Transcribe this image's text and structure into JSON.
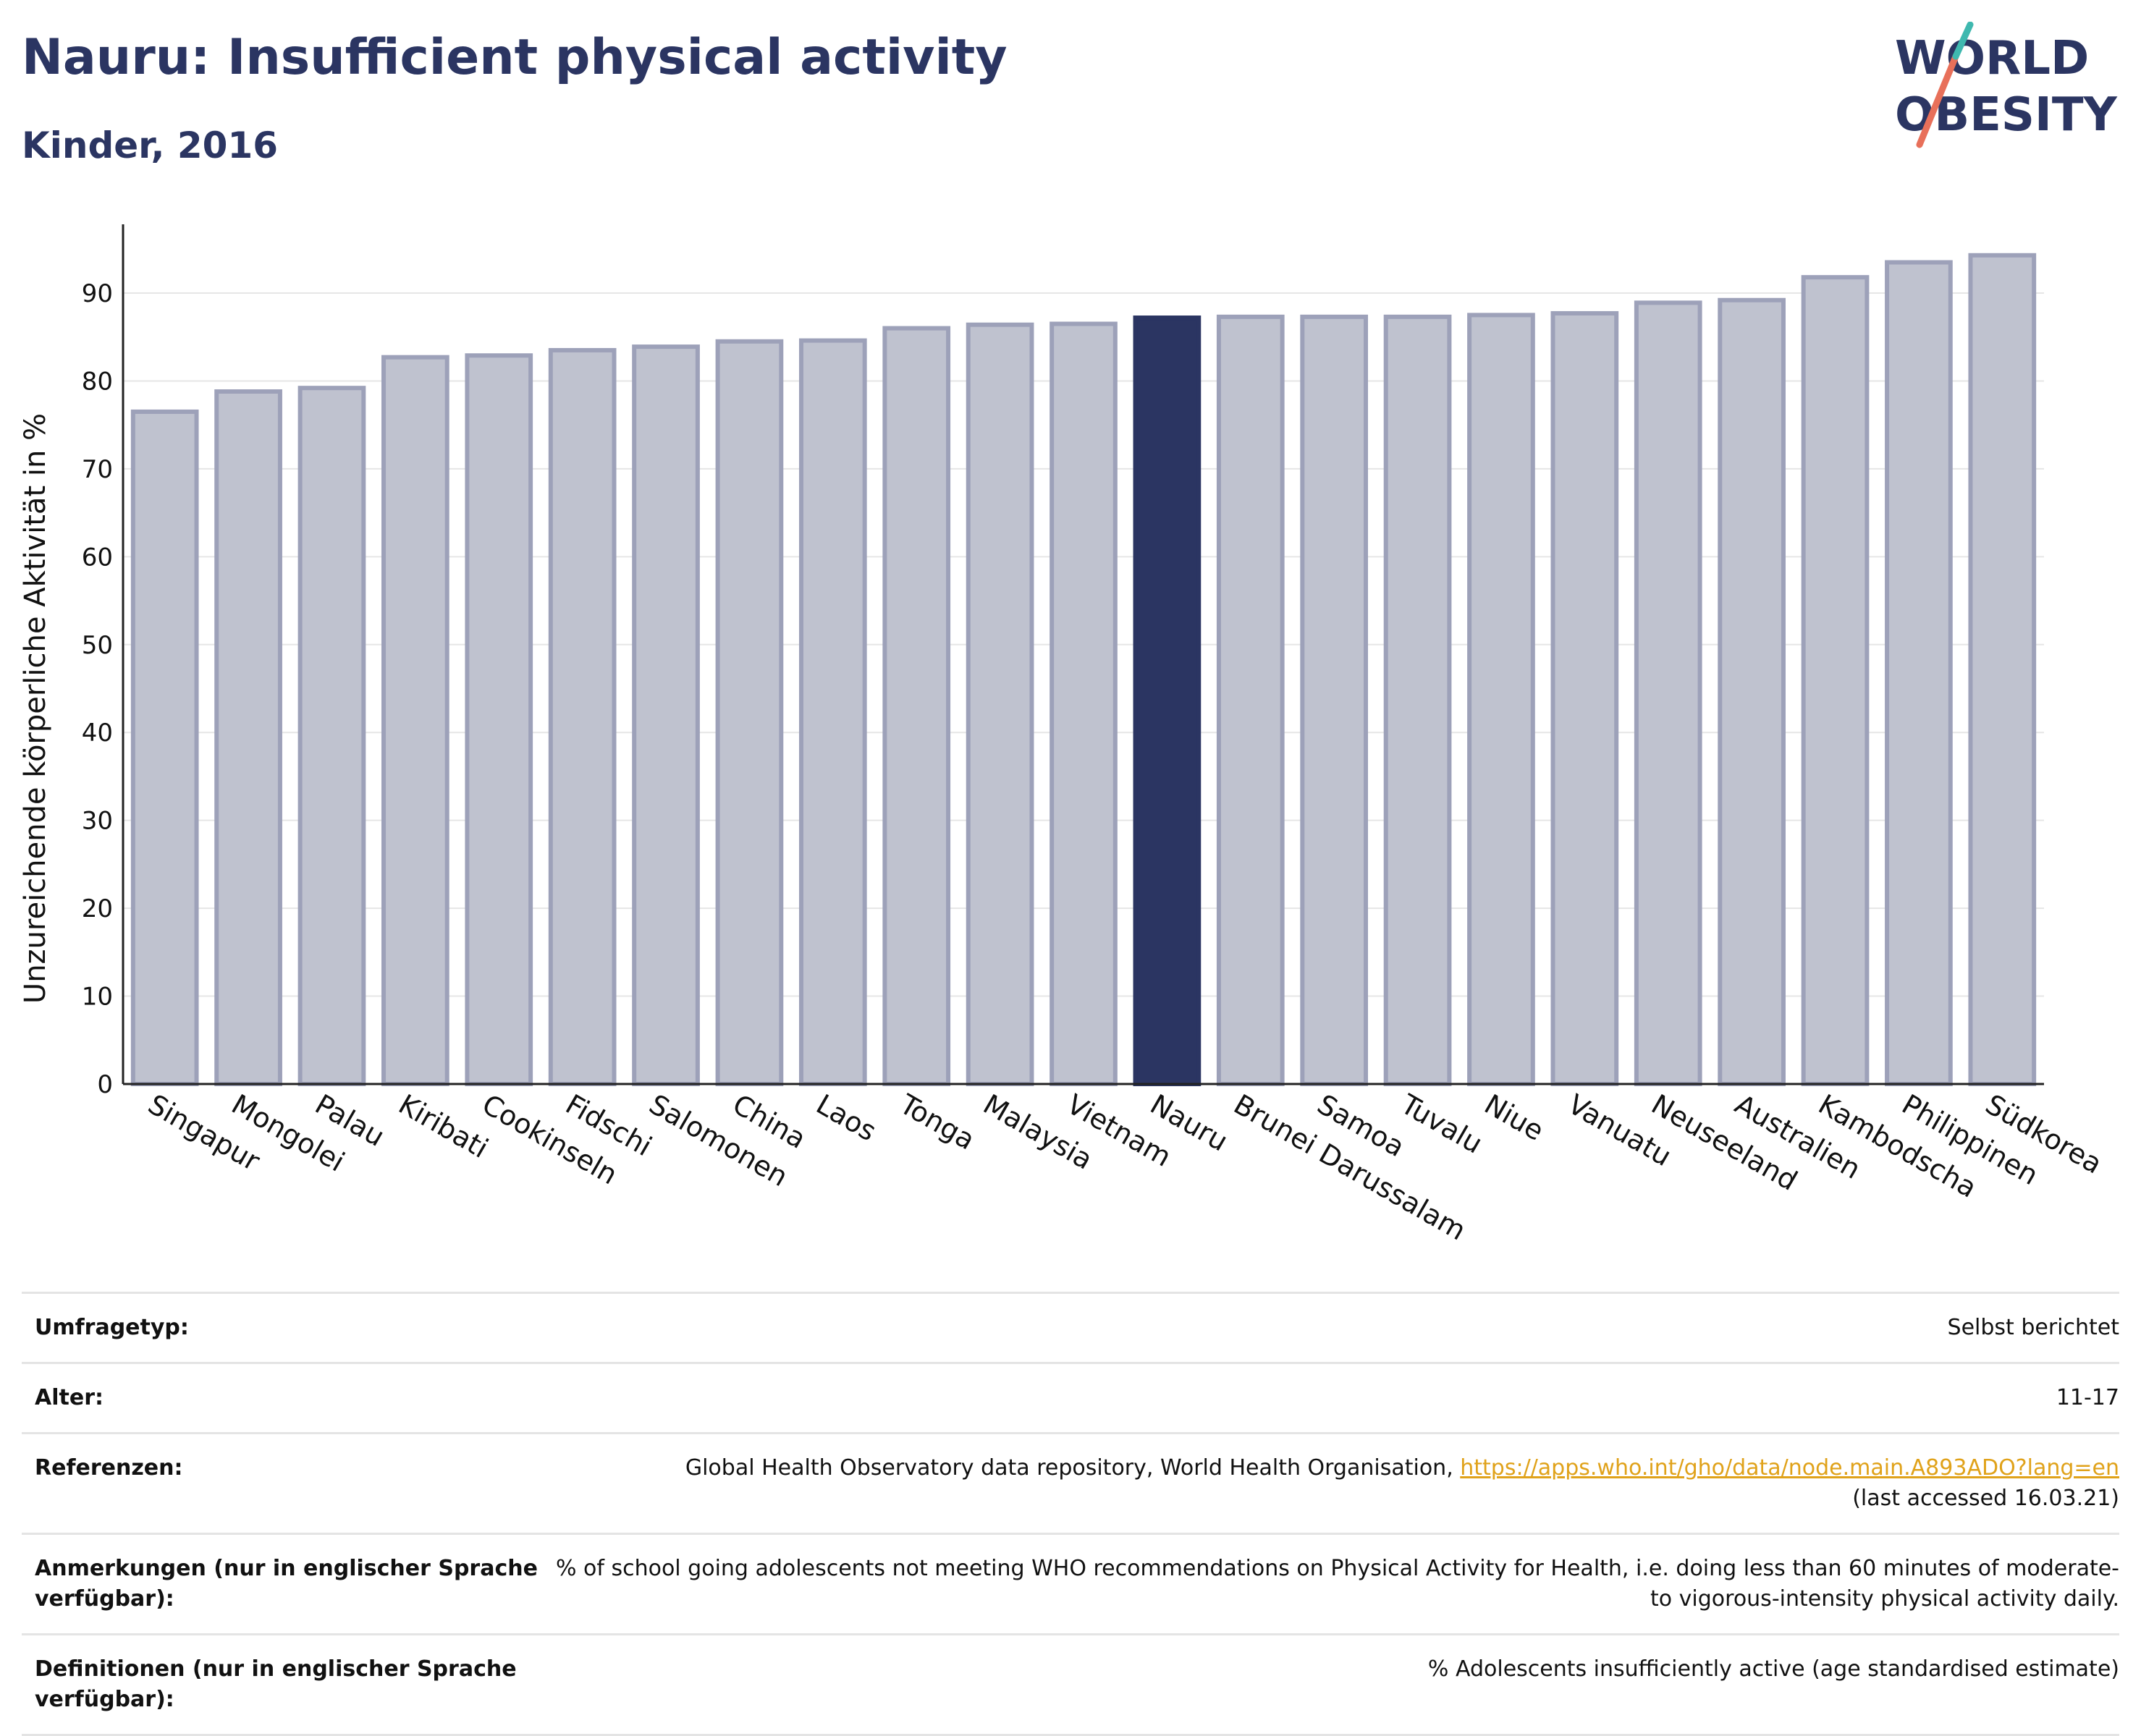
{
  "header": {
    "title": "Nauru: Insufficient physical activity",
    "subtitle": "Kinder, 2016"
  },
  "logo": {
    "line1": "WORLD",
    "line2": "OBESITY"
  },
  "chart_data": {
    "type": "bar",
    "categories": [
      "Singapur",
      "Mongolei",
      "Palau",
      "Kiribati",
      "Cookinseln",
      "Fidschi",
      "Salomonen",
      "China",
      "Laos",
      "Tonga",
      "Malaysia",
      "Vietnam",
      "Nauru",
      "Brunei Darussalam",
      "Samoa",
      "Tuvalu",
      "Niue",
      "Vanuatu",
      "Neuseeland",
      "Australien",
      "Kambodscha",
      "Philippinen",
      "Südkorea"
    ],
    "values": [
      76.5,
      78.8,
      79.2,
      82.7,
      82.9,
      83.5,
      83.9,
      84.5,
      84.6,
      86.0,
      86.4,
      86.5,
      87.2,
      87.3,
      87.3,
      87.3,
      87.5,
      87.7,
      88.9,
      89.2,
      91.8,
      93.5,
      94.3
    ],
    "highlight": "Nauru",
    "ylabel": "Unzureichende körperliche Aktivität in %",
    "xlabel": "",
    "ylim": [
      0,
      97
    ],
    "yticks": [
      0,
      10,
      20,
      30,
      40,
      50,
      60,
      70,
      80,
      90
    ],
    "grid": true,
    "colors": {
      "bar": "#bfc2cf",
      "bar_edge": "#9da1b9",
      "highlight": "#2b3562",
      "grid": "#e6e6e6"
    }
  },
  "info": {
    "survey_type_label": "Umfragetyp:",
    "survey_type_value": "Selbst berichtet",
    "age_label": "Alter:",
    "age_value": "11-17",
    "references_label": "Referenzen:",
    "references_text": "Global Health Observatory data repository, World Health Organisation, ",
    "references_link": "https://apps.who.int/gho/data/node.main.A893ADO?lang=en",
    "references_accessed": "(last accessed 16.03.21)",
    "notes_label": "Anmerkungen (nur in englischer Sprache verfügbar):",
    "notes_value": "% of school going adolescents not meeting WHO recommendations on Physical Activity for Health, i.e. doing less than 60 minutes of moderate- to vigorous-intensity physical activity daily.",
    "definitions_label": "Definitionen (nur in englischer Sprache verfügbar):",
    "definitions_value": "% Adolescents insufficiently active (age standardised estimate)"
  }
}
